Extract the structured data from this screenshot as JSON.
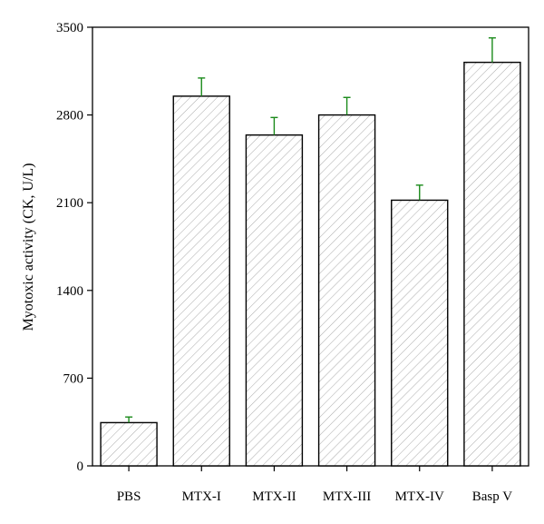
{
  "chart_data": {
    "type": "bar",
    "title": "",
    "xlabel": "",
    "ylabel": "Myotoxic activity (CK, U/L)",
    "ylim": [
      0,
      3500
    ],
    "yticks": [
      0,
      700,
      1400,
      2100,
      2800,
      3500
    ],
    "yticks_labels": [
      "0",
      "700",
      "1400",
      "2100",
      "2800",
      "3500"
    ],
    "categories": [
      "PBS",
      "MTX-I",
      "MTX-II",
      "MTX-III",
      "MTX-IV",
      "Basp V"
    ],
    "values": [
      345,
      2950,
      2640,
      2800,
      2120,
      3220
    ],
    "errors": [
      45,
      145,
      140,
      140,
      120,
      195
    ],
    "grid": false,
    "legend": "none",
    "colors": {
      "bar_edge": "#000000",
      "bar_fill": "#ffffff",
      "hatch": "#aaaaaa",
      "error_bar": "#1a8a1a",
      "axis": "#000000"
    }
  }
}
